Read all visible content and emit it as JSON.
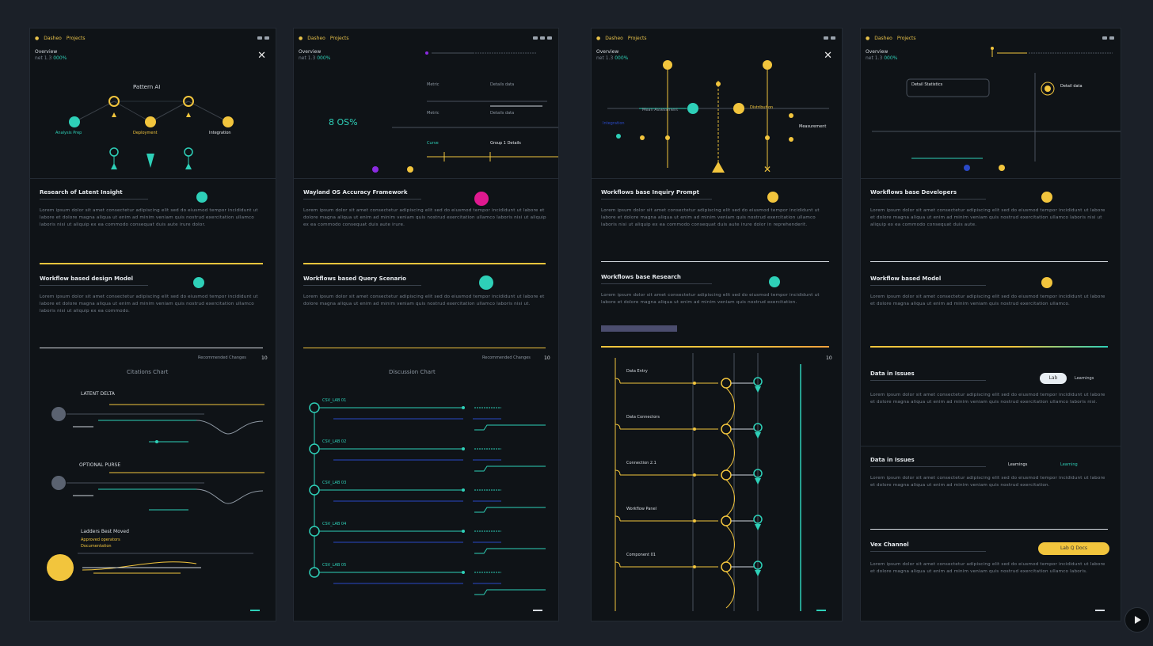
{
  "colors": {
    "bg": "#1b2028",
    "panel": "#0f1317",
    "yellow": "#f2c53d",
    "teal": "#2ed0b8",
    "magenta": "#e0198f",
    "blue": "#2a49c7",
    "purple": "#8b2be2"
  },
  "panel1": {
    "app": "Dasheo",
    "app2": "Projects",
    "hdr_a": "Overview",
    "hdr_b": "net 1.3",
    "hdr_g": "000%",
    "chart_title": "Pattern AI",
    "n1": "Analysis Prep",
    "n2": "Deployment",
    "n3": "Integration",
    "s1_title": "Research of Latent Insight",
    "s1_body": "Lorem ipsum dolor sit amet consectetur adipiscing elit sed do eiusmod tempor incididunt ut labore et dolore magna aliqua ut enim ad minim veniam quis nostrud exercitation ullamco laboris nisi ut aliquip ex ea commodo consequat duis aute irure dolor.",
    "s2_title": "Workflow based design Model",
    "s2_body": "Lorem ipsum dolor sit amet consectetur adipiscing elit sed do eiusmod tempor incididunt ut labore et dolore magna aliqua ut enim ad minim veniam quis nostrud exercitation ullamco laboris nisi ut aliquip ex ea commodo.",
    "more": "Recommended Changes",
    "num": "10",
    "g_title": "Citations Chart",
    "l1": "LATENT DELTA",
    "l2": "OPTIONAL PURSE",
    "l3": "Ladders Best Moved",
    "l3a": "Approved operators",
    "l3b": "Documentation"
  },
  "panel2": {
    "app": "Dasheo",
    "app2": "Projects",
    "hdr_a": "Overview",
    "hdr_b": "net 1.3",
    "hdr_g": "000%",
    "big": "8 OS%",
    "r1": "Metric",
    "r1v": "Details data",
    "r2": "Metric",
    "r2v": "Details data",
    "r3": "Curve",
    "r3v": "Group 1 Details",
    "s1_title": "Wayland OS Accuracy Framework",
    "s1_body": "Lorem ipsum dolor sit amet consectetur adipiscing elit sed do eiusmod tempor incididunt ut labore et dolore magna aliqua ut enim ad minim veniam quis nostrud exercitation ullamco laboris nisi ut aliquip ex ea commodo consequat duis aute irure.",
    "s2_title": "Workflows based Query Scenario",
    "s2_body": "Lorem ipsum dolor sit amet consectetur adipiscing elit sed do eiusmod tempor incididunt ut labore et dolore magna aliqua ut enim ad minim veniam quis nostrud exercitation ullamco laboris nisi ut.",
    "more": "Recommended Changes",
    "num": "10",
    "g_title": "Discussion Chart",
    "rows": [
      "CSV_LAB 01",
      "CSV_LAB 02",
      "CSV_LAB 03",
      "CSV_LAB 04",
      "CSV_LAB 05"
    ]
  },
  "panel3": {
    "app": "Dasheo",
    "app2": "Projects",
    "hdr_a": "Overview",
    "hdr_b": "net 1.3",
    "hdr_g": "000%",
    "m1": "Mean Assessment",
    "m2": "Distribution",
    "m3": "Integration",
    "m4": "Measurement",
    "s1_title": "Workflows base Inquiry Prompt",
    "s1_body": "Lorem ipsum dolor sit amet consectetur adipiscing elit sed do eiusmod tempor incididunt ut labore et dolore magna aliqua ut enim ad minim veniam quis nostrud exercitation ullamco laboris nisi ut aliquip ex ea commodo consequat duis aute irure dolor in reprehenderit.",
    "s2_title": "Workflows base Research",
    "s2_body": "Lorem ipsum dolor sit amet consectetur adipiscing elit sed do eiusmod tempor incididunt ut labore et dolore magna aliqua ut enim ad minim veniam quis nostrud exercitation.",
    "more": "Recommended Changes",
    "num": "10",
    "t_rows": [
      "Data Entry",
      "Data Connectors",
      "Connection 2.1",
      "Workflow Panel",
      "Component 01"
    ]
  },
  "panel4": {
    "app": "Dasheo",
    "app2": "Projects",
    "hdr_a": "Overview",
    "hdr_b": "net 1.3",
    "hdr_g": "000%",
    "c1": "Detail Statistics",
    "c2": "Detail data",
    "s1_title": "Workflows base Developers",
    "s1_body": "Lorem ipsum dolor sit amet consectetur adipiscing elit sed do eiusmod tempor incididunt ut labore et dolore magna aliqua ut enim ad minim veniam quis nostrud exercitation ullamco laboris nisi ut aliquip ex ea commodo consequat duis aute.",
    "s2_title": "Workflow based Model",
    "s2_body": "Lorem ipsum dolor sit amet consectetur adipiscing elit sed do eiusmod tempor incididunt ut labore et dolore magna aliqua ut enim ad minim veniam quis nostrud exercitation ullamco.",
    "s3_title": "Data in Issues",
    "s3_toggle": "Lab",
    "s3_right": "Learnings",
    "s3_body": "Lorem ipsum dolor sit amet consectetur adipiscing elit sed do eiusmod tempor incididunt ut labore et dolore magna aliqua ut enim ad minim veniam quis nostrud exercitation ullamco laboris nisi.",
    "s4_title": "Data in Issues",
    "s4_right": "Learnings",
    "s4_right2": "Learning",
    "s4_body": "Lorem ipsum dolor sit amet consectetur adipiscing elit sed do eiusmod tempor incididunt ut labore et dolore magna aliqua ut enim ad minim veniam quis nostrud exercitation.",
    "s5_title": "Vex Channel",
    "s5_pill": "Lab   Q   Docs",
    "s5_body": "Lorem ipsum dolor sit amet consectetur adipiscing elit sed do eiusmod tempor incididunt ut labore et dolore magna aliqua ut enim ad minim veniam quis nostrud exercitation ullamco laboris."
  }
}
